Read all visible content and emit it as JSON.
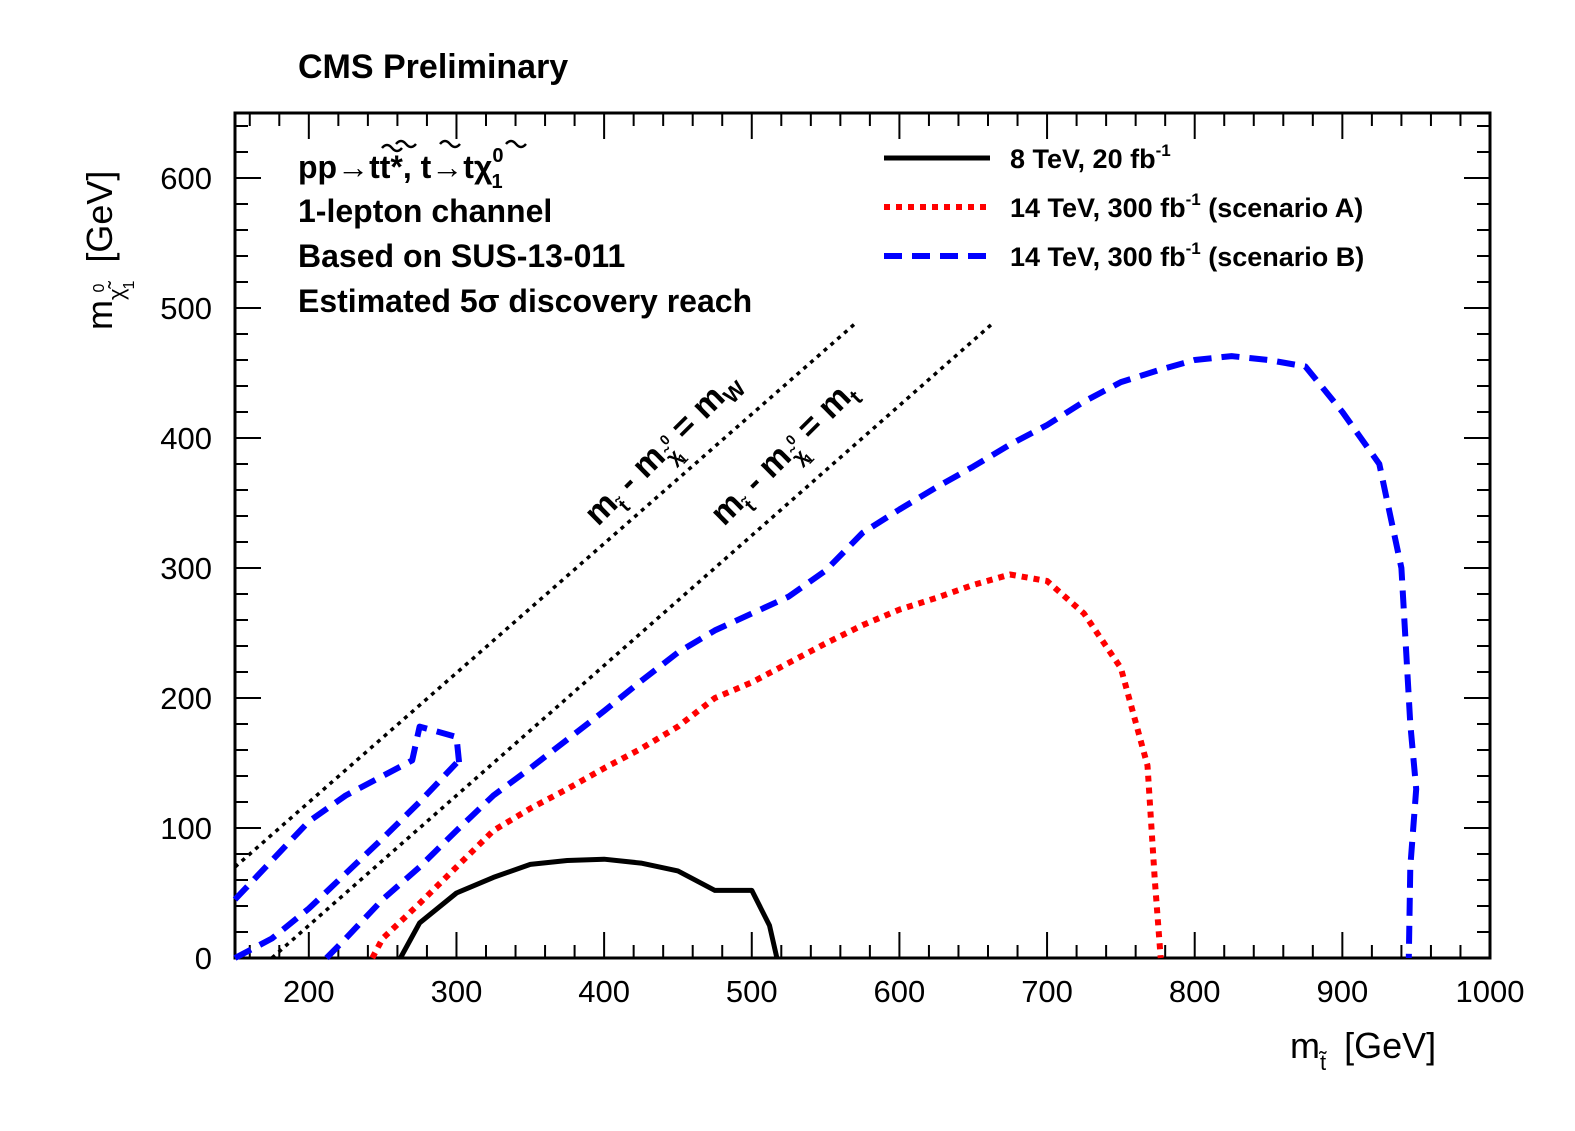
{
  "header": {
    "title": "CMS Preliminary"
  },
  "info": {
    "lines": [
      "1-lepton channel",
      "Based on SUS-13-011",
      "Estimated 5σ discovery reach"
    ],
    "process": {
      "pp": "pp",
      "arrow": "→",
      "tt": "tt",
      "star": "*, ",
      "t": "t",
      "arrow2": "→",
      "t2": "t",
      "chi": "χ",
      "sup0": "0",
      "sub1": "1"
    }
  },
  "axes": {
    "x_label_main": "m",
    "x_label_sub": "t̃",
    "x_label_unit": "[GeV]",
    "y_label_main": "m",
    "y_label_sub": "χ̃",
    "y_label_sup": "0",
    "y_label_sub1": "1",
    "y_label_unit": "[GeV]"
  },
  "diagonals": {
    "mw_main": "m",
    "mw_sub_t": "t̃",
    "mw_minus": " - m",
    "mw_sub_chi": "χ̃",
    "mw_sup": "0",
    "mw_sub1": "1",
    "mw_eq": " = m",
    "mw_end": "W",
    "mt_main": "m",
    "mt_sub_t": "t̃",
    "mt_minus": " - m",
    "mt_sub_chi": "χ̃",
    "mt_sup": "0",
    "mt_sub1": "1",
    "mt_eq": " = m",
    "mt_end": "t"
  },
  "legend": {
    "position": "top-right",
    "entries": [
      {
        "pre": "8 TeV, 20 fb",
        "sup": "-1",
        "post": ""
      },
      {
        "pre": "14 TeV, 300 fb",
        "sup": "-1",
        "post": " (scenario A)"
      },
      {
        "pre": "14 TeV, 300 fb",
        "sup": "-1",
        "post": " (scenario B)"
      }
    ]
  },
  "colors": {
    "black": "#000000",
    "red": "#ff0000",
    "blue": "#0000ff"
  },
  "chart_data": {
    "type": "line",
    "xlim": [
      150,
      1000
    ],
    "ylim": [
      0,
      650
    ],
    "x_ticks": [
      200,
      300,
      400,
      500,
      600,
      700,
      800,
      900,
      1000
    ],
    "y_ticks": [
      0,
      100,
      200,
      300,
      400,
      500,
      600
    ],
    "grid": false,
    "series": [
      {
        "name": "8 TeV, 20 fb-1",
        "style": "solid",
        "color": "#000000",
        "points": [
          [
            262,
            0
          ],
          [
            275,
            27
          ],
          [
            300,
            50
          ],
          [
            325,
            62
          ],
          [
            350,
            72
          ],
          [
            375,
            75
          ],
          [
            400,
            76
          ],
          [
            425,
            73
          ],
          [
            450,
            67
          ],
          [
            475,
            52
          ],
          [
            500,
            52
          ],
          [
            512,
            25
          ],
          [
            517,
            0
          ]
        ]
      },
      {
        "name": "14 TeV, 300 fb-1 (scenario A)",
        "style": "dotted",
        "color": "#ff0000",
        "points": [
          [
            243,
            0
          ],
          [
            250,
            15
          ],
          [
            275,
            42
          ],
          [
            300,
            70
          ],
          [
            325,
            98
          ],
          [
            350,
            115
          ],
          [
            375,
            130
          ],
          [
            400,
            146
          ],
          [
            425,
            161
          ],
          [
            450,
            178
          ],
          [
            475,
            200
          ],
          [
            500,
            212
          ],
          [
            525,
            227
          ],
          [
            550,
            242
          ],
          [
            575,
            256
          ],
          [
            600,
            268
          ],
          [
            625,
            277
          ],
          [
            650,
            287
          ],
          [
            675,
            295
          ],
          [
            700,
            290
          ],
          [
            725,
            265
          ],
          [
            750,
            223
          ],
          [
            768,
            148
          ],
          [
            773,
            60
          ],
          [
            777,
            0
          ]
        ]
      },
      {
        "name": "14 TeV, 300 fb-1 (scenario B) upper",
        "style": "dashed",
        "color": "#0000ff",
        "points": [
          [
            150,
            45
          ],
          [
            175,
            75
          ],
          [
            200,
            105
          ],
          [
            225,
            125
          ],
          [
            250,
            140
          ],
          [
            270,
            152
          ],
          [
            275,
            178
          ],
          [
            300,
            170
          ],
          [
            302,
            148
          ]
        ]
      },
      {
        "name": "14 TeV, 300 fb-1 (scenario B) main",
        "style": "dashed",
        "color": "#0000ff",
        "points": [
          [
            150,
            0
          ],
          [
            175,
            15
          ],
          [
            200,
            38
          ],
          [
            225,
            65
          ],
          [
            250,
            92
          ],
          [
            275,
            120
          ],
          [
            300,
            150
          ]
        ]
      },
      {
        "name": "14 TeV, 300 fb-1 (scenario B) lower",
        "style": "dashed",
        "color": "#0000ff",
        "points": [
          [
            212,
            0
          ],
          [
            225,
            15
          ],
          [
            250,
            45
          ],
          [
            275,
            70
          ],
          [
            300,
            98
          ],
          [
            325,
            125
          ],
          [
            350,
            146
          ],
          [
            375,
            168
          ],
          [
            400,
            190
          ],
          [
            425,
            213
          ],
          [
            450,
            235
          ],
          [
            475,
            252
          ],
          [
            500,
            265
          ],
          [
            525,
            278
          ],
          [
            550,
            298
          ],
          [
            575,
            327
          ],
          [
            600,
            345
          ],
          [
            625,
            362
          ],
          [
            650,
            378
          ],
          [
            675,
            395
          ],
          [
            700,
            410
          ],
          [
            725,
            428
          ],
          [
            750,
            443
          ],
          [
            775,
            452
          ],
          [
            800,
            460
          ],
          [
            825,
            463
          ],
          [
            850,
            460
          ],
          [
            875,
            455
          ],
          [
            900,
            420
          ],
          [
            925,
            380
          ],
          [
            940,
            300
          ],
          [
            946,
            180
          ],
          [
            950,
            130
          ],
          [
            946,
            70
          ],
          [
            945,
            0
          ]
        ]
      },
      {
        "name": "diag-mw",
        "style": "dotted-fine",
        "color": "#000000",
        "points": [
          [
            150,
            70
          ],
          [
            570,
            488
          ]
        ]
      },
      {
        "name": "diag-mt",
        "style": "dotted-fine",
        "color": "#000000",
        "points": [
          [
            175,
            0
          ],
          [
            663,
            488
          ]
        ]
      }
    ]
  }
}
